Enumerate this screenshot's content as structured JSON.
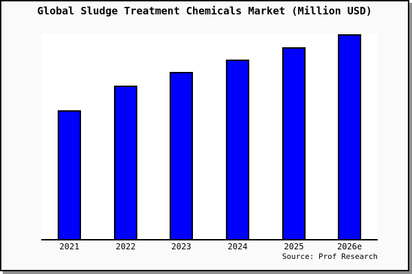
{
  "window": {
    "background": "#fafafa",
    "frame_border_color": "#000000",
    "shadow_color": "#8f8f8f"
  },
  "chart_data": {
    "type": "bar",
    "title": "Global Sludge Treatment Chemicals Market (Million USD)",
    "categories": [
      "2021",
      "2022",
      "2023",
      "2024",
      "2025",
      "2026e"
    ],
    "values": [
      63,
      75,
      81.5,
      87.5,
      93.5,
      100
    ],
    "values_note": "No y-axis or data labels shown in chart; values estimated from bar heights relative to tallest bar (2026e = 100).",
    "xlabel": "",
    "ylabel": "",
    "ylim": [
      0,
      100
    ],
    "grid": false,
    "legend": null,
    "bar_fill": "#0000ff",
    "bar_border": "#000000",
    "plot_background": "#ffffff",
    "axis_color": "#000000"
  },
  "footer": {
    "source_label": "Source: Prof Research"
  }
}
